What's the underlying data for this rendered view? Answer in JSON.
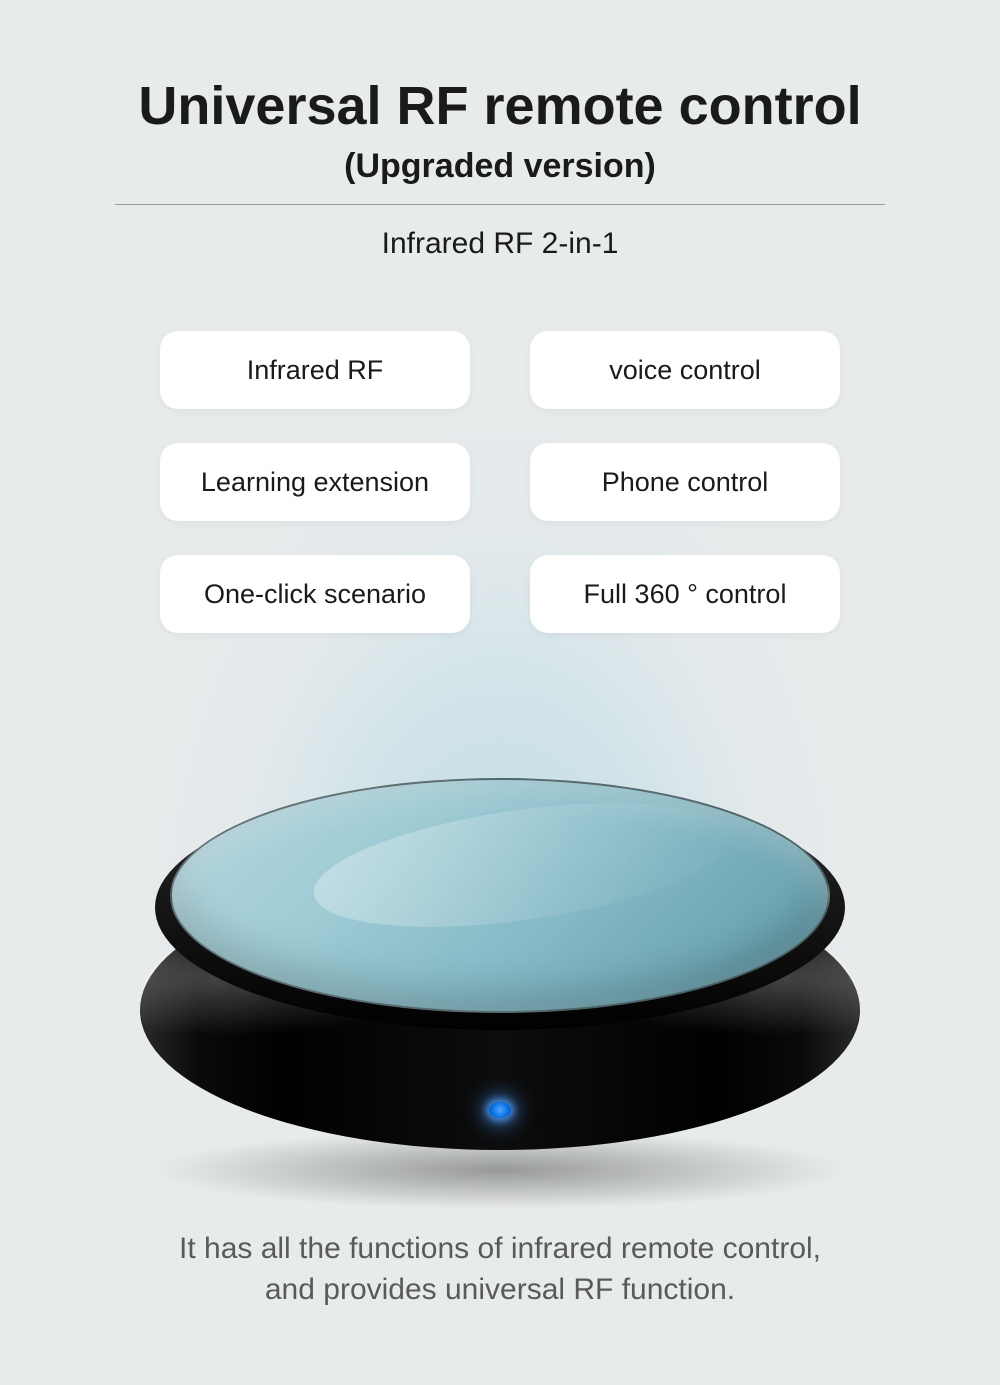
{
  "header": {
    "title": "Universal RF remote control",
    "subtitle": "(Upgraded version)",
    "tagline": "Infrared RF 2-in-1"
  },
  "features": [
    {
      "label": "Infrared RF"
    },
    {
      "label": "voice control"
    },
    {
      "label": "Learning extension"
    },
    {
      "label": "Phone control"
    },
    {
      "label": "One-click scenario"
    },
    {
      "label": "Full 360 ° control"
    }
  ],
  "footer": {
    "line1": "It has all the functions of infrared remote control,",
    "line2": "and provides universal RF function."
  },
  "styling": {
    "page_bg": "#e8ebec",
    "title_color": "#1a1a1a",
    "title_fontsize": 54,
    "subtitle_fontsize": 34,
    "tagline_fontsize": 30,
    "divider_color": "#999999",
    "divider_width": 770,
    "pill_bg": "#ffffff",
    "pill_radius": 18,
    "pill_fontsize": 27,
    "pill_width": 310,
    "pill_height": 78,
    "grid_gap_row": 34,
    "grid_gap_col": 60,
    "footer_color": "#5a5a5a",
    "footer_fontsize": 30,
    "beam_color": "rgba(160,210,225,0.5)",
    "device_glass_gradient": [
      "#b8d8e0",
      "#a0ccd5",
      "#88bcc8",
      "#70a8b5",
      "#5890a0"
    ],
    "device_body_colors": [
      "#2a2a2a",
      "#0a0a0a",
      "#000000"
    ],
    "led_color": "#4da6ff"
  }
}
